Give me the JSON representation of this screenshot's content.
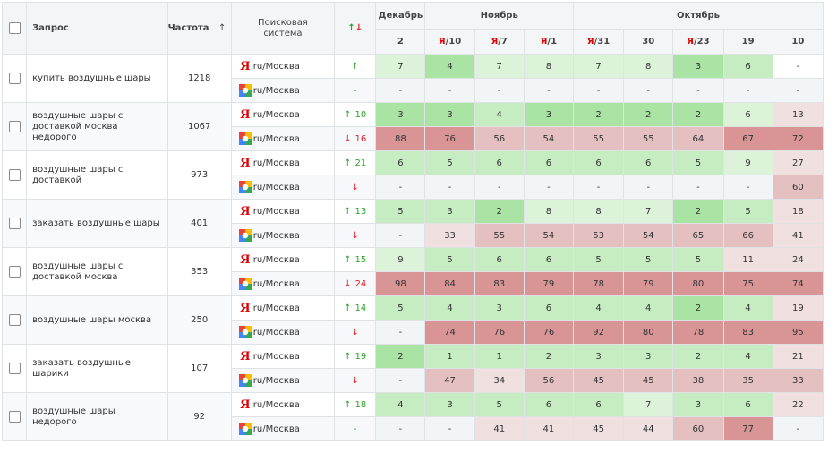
{
  "header": {
    "query": "Запрос",
    "frequency": "Частота",
    "frequency_sort": "↑",
    "engine_l1": "Поисковая",
    "engine_l2": "система",
    "trend_up": "↑",
    "trend_down": "↓",
    "months": [
      {
        "label": "Декабрь",
        "span": 1
      },
      {
        "label": "Ноябрь",
        "span": 3
      },
      {
        "label": "Октябрь",
        "span": 5
      }
    ],
    "dates": [
      {
        "ya": "",
        "num": "2"
      },
      {
        "ya": "Я",
        "num": "/10"
      },
      {
        "ya": "Я",
        "num": "/7"
      },
      {
        "ya": "Я",
        "num": "/1"
      },
      {
        "ya": "Я",
        "num": "/31"
      },
      {
        "ya": "",
        "num": "30"
      },
      {
        "ya": "Я",
        "num": "/23"
      },
      {
        "ya": "",
        "num": "19"
      },
      {
        "ya": "",
        "num": "10"
      }
    ]
  },
  "engines": {
    "yandex_icon": "Я",
    "region": "ru/Москва"
  },
  "colors": {
    "green_strong": "#a9e4a4",
    "green_mid": "#c5edc1",
    "green_light": "#dcf3d9",
    "neutral": "#ffffff",
    "neutral_blank": "#f2f5f8",
    "red_light": "#f1e0e0",
    "red_mid": "#e4c0c1",
    "red_strong": "#d99595"
  },
  "rows": [
    {
      "query": "купить воздушные шары",
      "frequency": "1218",
      "yandex": {
        "arrow": "↑",
        "change": "",
        "dir": "up",
        "values": [
          "7",
          "4",
          "7",
          "8",
          "7",
          "8",
          "3",
          "6",
          "-"
        ],
        "shades": [
          "gl",
          "gs",
          "gl",
          "gl",
          "gl",
          "gl",
          "gs",
          "gm",
          "n"
        ]
      },
      "google": {
        "arrow": "-",
        "change": "",
        "dir": "none",
        "values": [
          "-",
          "-",
          "-",
          "-",
          "-",
          "-",
          "-",
          "-",
          "-"
        ],
        "shades": [
          "b",
          "b",
          "b",
          "b",
          "b",
          "b",
          "b",
          "b",
          "b"
        ]
      }
    },
    {
      "query": "воздушные шары с доставкой москва недорого",
      "frequency": "1067",
      "yandex": {
        "arrow": "↑",
        "change": "10",
        "dir": "up",
        "values": [
          "3",
          "3",
          "4",
          "3",
          "2",
          "2",
          "2",
          "6",
          "13"
        ],
        "shades": [
          "gs",
          "gs",
          "gm",
          "gs",
          "gs",
          "gs",
          "gs",
          "gl",
          "rl"
        ]
      },
      "google": {
        "arrow": "↓",
        "change": "16",
        "dir": "down",
        "values": [
          "88",
          "76",
          "56",
          "54",
          "55",
          "55",
          "64",
          "67",
          "72"
        ],
        "shades": [
          "rs",
          "rs",
          "rm",
          "rm",
          "rm",
          "rm",
          "rm",
          "rs",
          "rs"
        ]
      }
    },
    {
      "query": "воздушные шары с доставкой",
      "frequency": "973",
      "yandex": {
        "arrow": "↑",
        "change": "21",
        "dir": "up",
        "values": [
          "6",
          "5",
          "6",
          "6",
          "6",
          "6",
          "5",
          "9",
          "27"
        ],
        "shades": [
          "gm",
          "gm",
          "gm",
          "gm",
          "gm",
          "gm",
          "gm",
          "gl",
          "rl"
        ]
      },
      "google": {
        "arrow": "↓",
        "change": "",
        "dir": "down",
        "values": [
          "-",
          "-",
          "-",
          "-",
          "-",
          "-",
          "-",
          "-",
          "60"
        ],
        "shades": [
          "b",
          "b",
          "b",
          "b",
          "b",
          "b",
          "b",
          "b",
          "rm"
        ]
      }
    },
    {
      "query": "заказать воздушные шары",
      "frequency": "401",
      "yandex": {
        "arrow": "↑",
        "change": "13",
        "dir": "up",
        "values": [
          "5",
          "3",
          "2",
          "8",
          "8",
          "7",
          "2",
          "5",
          "18"
        ],
        "shades": [
          "gm",
          "gm",
          "gs",
          "gl",
          "gl",
          "gl",
          "gs",
          "gm",
          "rl"
        ]
      },
      "google": {
        "arrow": "↓",
        "change": "",
        "dir": "down",
        "values": [
          "-",
          "33",
          "55",
          "54",
          "53",
          "54",
          "65",
          "66",
          "41"
        ],
        "shades": [
          "b",
          "rl",
          "rm",
          "rm",
          "rm",
          "rm",
          "rm",
          "rm",
          "rl"
        ]
      }
    },
    {
      "query": "воздушные шары с доставкой москва",
      "frequency": "353",
      "yandex": {
        "arrow": "↑",
        "change": "15",
        "dir": "up",
        "values": [
          "9",
          "5",
          "6",
          "6",
          "5",
          "5",
          "5",
          "11",
          "24"
        ],
        "shades": [
          "gl",
          "gm",
          "gm",
          "gm",
          "gm",
          "gm",
          "gm",
          "rl",
          "rl"
        ]
      },
      "google": {
        "arrow": "↓",
        "change": "24",
        "dir": "down",
        "values": [
          "98",
          "84",
          "83",
          "79",
          "78",
          "79",
          "80",
          "75",
          "74"
        ],
        "shades": [
          "rs",
          "rs",
          "rs",
          "rs",
          "rs",
          "rs",
          "rs",
          "rs",
          "rs"
        ]
      }
    },
    {
      "query": "воздушные шары москва",
      "frequency": "250",
      "yandex": {
        "arrow": "↑",
        "change": "14",
        "dir": "up",
        "values": [
          "5",
          "4",
          "3",
          "6",
          "4",
          "4",
          "2",
          "4",
          "19"
        ],
        "shades": [
          "gm",
          "gm",
          "gm",
          "gm",
          "gm",
          "gm",
          "gs",
          "gm",
          "rl"
        ]
      },
      "google": {
        "arrow": "↓",
        "change": "",
        "dir": "down",
        "values": [
          "-",
          "74",
          "76",
          "76",
          "92",
          "80",
          "78",
          "83",
          "95"
        ],
        "shades": [
          "b",
          "rs",
          "rs",
          "rs",
          "rs",
          "rs",
          "rs",
          "rs",
          "rs"
        ]
      }
    },
    {
      "query": "заказать воздушные шарики",
      "frequency": "107",
      "yandex": {
        "arrow": "↑",
        "change": "19",
        "dir": "up",
        "values": [
          "2",
          "1",
          "1",
          "2",
          "3",
          "3",
          "2",
          "4",
          "21"
        ],
        "shades": [
          "gs",
          "gm",
          "gm",
          "gm",
          "gm",
          "gm",
          "gm",
          "gm",
          "rl"
        ]
      },
      "google": {
        "arrow": "↓",
        "change": "",
        "dir": "down",
        "values": [
          "-",
          "47",
          "34",
          "56",
          "45",
          "45",
          "38",
          "35",
          "33"
        ],
        "shades": [
          "b",
          "rm",
          "rl",
          "rm",
          "rm",
          "rm",
          "rm",
          "rm",
          "rm"
        ]
      }
    },
    {
      "query": "воздушные шары недорого",
      "frequency": "92",
      "yandex": {
        "arrow": "↑",
        "change": "18",
        "dir": "up",
        "values": [
          "4",
          "3",
          "5",
          "6",
          "6",
          "7",
          "3",
          "6",
          "22"
        ],
        "shades": [
          "gm",
          "gm",
          "gm",
          "gm",
          "gm",
          "gl",
          "gm",
          "gm",
          "rl"
        ]
      },
      "google": {
        "arrow": "-",
        "change": "",
        "dir": "none",
        "values": [
          "-",
          "-",
          "41",
          "41",
          "45",
          "44",
          "60",
          "77",
          "-"
        ],
        "shades": [
          "b",
          "b",
          "rl",
          "rl",
          "rl",
          "rl",
          "rm",
          "rs",
          "b"
        ]
      }
    }
  ]
}
